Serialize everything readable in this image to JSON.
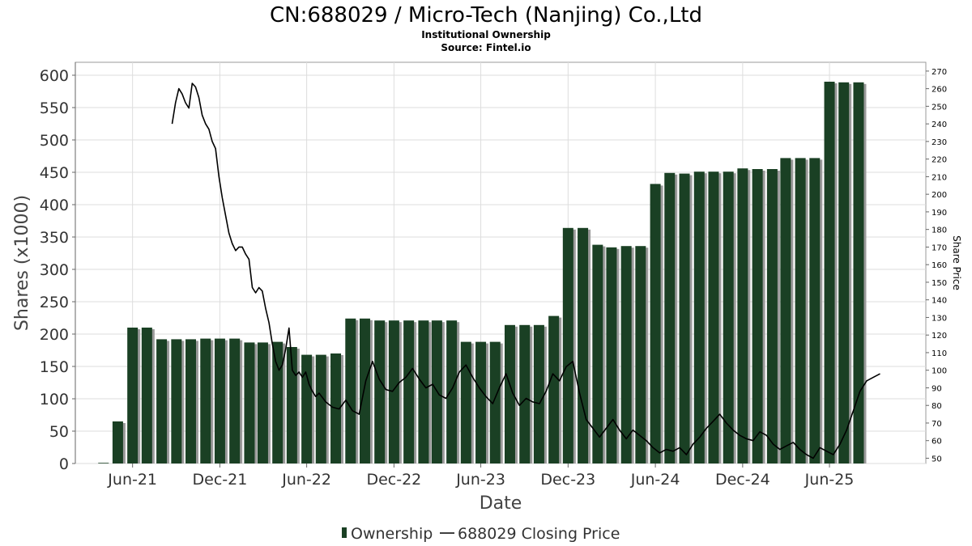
{
  "chart_data": {
    "type": "bar",
    "title": "CN:688029 / Micro-Tech (Nanjing) Co.,Ltd",
    "subtitle": "Institutional Ownership",
    "source": "Source: Fintel.io",
    "xlabel": "Date",
    "ylabel": "Shares (x1000)",
    "y2label": "Share Price",
    "ylim": [
      0,
      620
    ],
    "y2lim": [
      47,
      275
    ],
    "yticks": [
      0,
      50,
      100,
      150,
      200,
      250,
      300,
      350,
      400,
      450,
      500,
      550,
      600
    ],
    "y2ticks": [
      50,
      60,
      70,
      80,
      90,
      100,
      110,
      120,
      130,
      140,
      150,
      160,
      170,
      180,
      190,
      200,
      210,
      220,
      230,
      240,
      250,
      260,
      270
    ],
    "xlim": [
      "2021-02-01",
      "2025-12-20"
    ],
    "xticks": [
      {
        "date": "2021-06-01",
        "label": "Jun-21"
      },
      {
        "date": "2021-12-01",
        "label": "Dec-21"
      },
      {
        "date": "2022-06-01",
        "label": "Jun-22"
      },
      {
        "date": "2022-12-01",
        "label": "Dec-22"
      },
      {
        "date": "2023-06-01",
        "label": "Jun-23"
      },
      {
        "date": "2023-12-01",
        "label": "Dec-23"
      },
      {
        "date": "2024-06-01",
        "label": "Jun-24"
      },
      {
        "date": "2024-12-01",
        "label": "Dec-24"
      },
      {
        "date": "2025-06-01",
        "label": "Jun-25"
      }
    ],
    "grid": true,
    "legend_position": "bottom",
    "colors": {
      "bar": "#1a4024",
      "bar_shadow": "#9a9a9a",
      "line": "#000000",
      "grid": "#dddddd"
    },
    "series": [
      {
        "name": "Ownership",
        "type": "bar",
        "axis": "left",
        "x": [
          "2021-04-01",
          "2021-05-01",
          "2021-06-01",
          "2021-07-01",
          "2021-08-01",
          "2021-09-01",
          "2021-10-01",
          "2021-11-01",
          "2021-12-01",
          "2022-01-01",
          "2022-02-01",
          "2022-03-01",
          "2022-04-01",
          "2022-05-01",
          "2022-06-01",
          "2022-07-01",
          "2022-08-01",
          "2022-09-01",
          "2022-10-01",
          "2022-11-01",
          "2022-12-01",
          "2023-01-01",
          "2023-02-01",
          "2023-03-01",
          "2023-04-01",
          "2023-05-01",
          "2023-06-01",
          "2023-07-01",
          "2023-08-01",
          "2023-09-01",
          "2023-10-01",
          "2023-11-01",
          "2023-12-01",
          "2024-01-01",
          "2024-02-01",
          "2024-03-01",
          "2024-04-01",
          "2024-05-01",
          "2024-06-01",
          "2024-07-01",
          "2024-08-01",
          "2024-09-01",
          "2024-10-01",
          "2024-11-01",
          "2024-12-01",
          "2025-01-01",
          "2025-02-01",
          "2025-03-01",
          "2025-04-01",
          "2025-05-01",
          "2025-06-01",
          "2025-07-01",
          "2025-08-01",
          "2025-09-01"
        ],
        "values": [
          1,
          65,
          210,
          210,
          192,
          192,
          192,
          193,
          193,
          193,
          187,
          187,
          188,
          180,
          168,
          168,
          170,
          224,
          224,
          221,
          221,
          221,
          221,
          221,
          221,
          188,
          188,
          188,
          214,
          214,
          214,
          228,
          364,
          364,
          338,
          334,
          336,
          336,
          432,
          449,
          448,
          451,
          451,
          451,
          456,
          455,
          455,
          472,
          472,
          472,
          590,
          589,
          589,
          0
        ]
      },
      {
        "name": "688029 Closing Price",
        "type": "line",
        "axis": "right",
        "x": [
          "2021-08-23",
          "2021-08-30",
          "2021-09-06",
          "2021-09-13",
          "2021-09-20",
          "2021-09-27",
          "2021-10-04",
          "2021-10-11",
          "2021-10-18",
          "2021-10-25",
          "2021-11-01",
          "2021-11-08",
          "2021-11-15",
          "2021-11-22",
          "2021-11-29",
          "2021-12-06",
          "2021-12-13",
          "2021-12-20",
          "2021-12-27",
          "2022-01-03",
          "2022-01-10",
          "2022-01-17",
          "2022-01-24",
          "2022-01-31",
          "2022-02-07",
          "2022-02-14",
          "2022-02-21",
          "2022-02-28",
          "2022-03-07",
          "2022-03-14",
          "2022-03-21",
          "2022-03-28",
          "2022-04-04",
          "2022-04-11",
          "2022-04-18",
          "2022-04-25",
          "2022-05-02",
          "2022-05-09",
          "2022-05-16",
          "2022-05-23",
          "2022-05-30",
          "2022-06-06",
          "2022-06-13",
          "2022-06-20",
          "2022-06-27",
          "2022-07-11",
          "2022-07-25",
          "2022-08-08",
          "2022-08-22",
          "2022-09-05",
          "2022-09-19",
          "2022-10-03",
          "2022-10-17",
          "2022-10-31",
          "2022-11-14",
          "2022-11-28",
          "2022-12-12",
          "2022-12-26",
          "2023-01-09",
          "2023-01-23",
          "2023-02-06",
          "2023-02-20",
          "2023-03-06",
          "2023-03-20",
          "2023-04-03",
          "2023-04-17",
          "2023-05-01",
          "2023-05-15",
          "2023-05-29",
          "2023-06-12",
          "2023-06-26",
          "2023-07-10",
          "2023-07-24",
          "2023-08-07",
          "2023-08-21",
          "2023-09-04",
          "2023-09-18",
          "2023-10-02",
          "2023-10-16",
          "2023-10-30",
          "2023-11-13",
          "2023-11-27",
          "2023-12-11",
          "2023-12-25",
          "2024-01-08",
          "2024-01-22",
          "2024-02-05",
          "2024-02-19",
          "2024-03-04",
          "2024-03-18",
          "2024-04-01",
          "2024-04-15",
          "2024-04-29",
          "2024-05-13",
          "2024-05-27",
          "2024-06-10",
          "2024-06-24",
          "2024-07-08",
          "2024-07-22",
          "2024-08-05",
          "2024-08-19",
          "2024-09-02",
          "2024-09-16",
          "2024-09-30",
          "2024-10-14",
          "2024-10-28",
          "2024-11-11",
          "2024-11-25",
          "2024-12-09",
          "2024-12-23",
          "2025-01-06",
          "2025-01-20",
          "2025-02-03",
          "2025-02-17",
          "2025-03-03",
          "2025-03-17",
          "2025-03-31",
          "2025-04-14",
          "2025-04-28",
          "2025-05-12",
          "2025-05-26",
          "2025-06-09",
          "2025-06-23",
          "2025-07-07",
          "2025-07-21",
          "2025-08-04",
          "2025-08-18",
          "2025-09-01",
          "2025-09-15"
        ],
        "values": [
          240,
          252,
          260,
          257,
          252,
          249,
          263,
          261,
          255,
          245,
          240,
          237,
          230,
          226,
          210,
          198,
          188,
          178,
          172,
          168,
          170,
          170,
          166,
          163,
          147,
          144,
          147,
          145,
          135,
          127,
          115,
          105,
          100,
          103,
          112,
          124,
          100,
          97,
          99,
          96,
          99,
          92,
          88,
          85,
          87,
          82,
          79,
          78,
          83,
          77,
          75,
          94,
          105,
          95,
          89,
          88,
          93,
          96,
          101,
          95,
          90,
          92,
          86,
          84,
          90,
          99,
          103,
          96,
          90,
          85,
          81,
          90,
          98,
          87,
          80,
          84,
          82,
          81,
          88,
          98,
          94,
          102,
          105,
          87,
          72,
          67,
          62,
          67,
          72,
          66,
          61,
          66,
          63,
          60,
          56,
          53,
          55,
          54,
          56,
          52,
          58,
          62,
          67,
          71,
          75,
          70,
          66,
          63,
          61,
          60,
          65,
          63,
          58,
          55,
          57,
          59,
          55,
          52,
          50,
          56,
          54,
          52,
          58,
          66,
          77,
          88,
          94,
          96,
          98
        ]
      }
    ]
  }
}
